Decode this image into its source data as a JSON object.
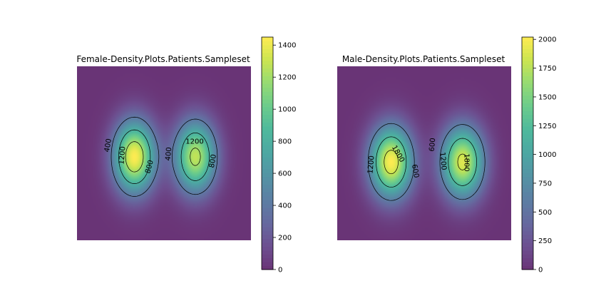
{
  "chart_data": [
    {
      "type": "heatmap",
      "title": "Female-Density.Plots.Patients.Sampleset",
      "xlabel": "",
      "ylabel": "",
      "axes_visible": false,
      "colormap": "viridis",
      "alpha": 0.8,
      "colorbar": {
        "range": [
          0,
          1450
        ],
        "ticks": [
          0,
          200,
          400,
          600,
          800,
          1000,
          1200,
          1400
        ],
        "tick_labels": [
          "0",
          "200",
          "400",
          "600",
          "800",
          "1000",
          "1200",
          "1400"
        ]
      },
      "density_peaks": [
        {
          "center": [
            0.33,
            0.52
          ],
          "spread": [
            0.083,
            0.142
          ],
          "peak": 1450
        },
        {
          "center": [
            0.68,
            0.52
          ],
          "spread": [
            0.083,
            0.142
          ],
          "peak": 1280
        }
      ],
      "contour_levels": [
        400,
        800,
        1200
      ],
      "contour_labels": [
        {
          "text": "400",
          "angle": -80
        },
        {
          "text": "1200",
          "angle": -85
        },
        {
          "text": "800",
          "angle": -75
        },
        {
          "text": "400",
          "angle": -85
        },
        {
          "text": "1200",
          "angle": 0
        },
        {
          "text": "800",
          "angle": -80
        }
      ]
    },
    {
      "type": "heatmap",
      "title": "Male-Density.Plots.Patients.Sampleset",
      "xlabel": "",
      "ylabel": "",
      "axes_visible": false,
      "colormap": "viridis",
      "alpha": 0.8,
      "colorbar": {
        "range": [
          0,
          2020
        ],
        "ticks": [
          0,
          250,
          500,
          750,
          1000,
          1250,
          1500,
          1750,
          2000
        ],
        "tick_labels": [
          "0",
          "250",
          "500",
          "750",
          "1000",
          "1250",
          "1500",
          "1750",
          "2000"
        ]
      },
      "density_peaks": [
        {
          "center": [
            0.31,
            0.55
          ],
          "spread": [
            0.085,
            0.142
          ],
          "peak": 2020
        },
        {
          "center": [
            0.72,
            0.55
          ],
          "spread": [
            0.085,
            0.142
          ],
          "peak": 1900
        }
      ],
      "contour_levels": [
        600,
        1200,
        1800
      ],
      "contour_labels": [
        {
          "text": "1200",
          "angle": -85
        },
        {
          "text": "1800",
          "angle": 60
        },
        {
          "text": "600",
          "angle": 80
        },
        {
          "text": "600",
          "angle": -85
        },
        {
          "text": "1200",
          "angle": 85
        },
        {
          "text": "1800",
          "angle": 90
        }
      ]
    }
  ]
}
